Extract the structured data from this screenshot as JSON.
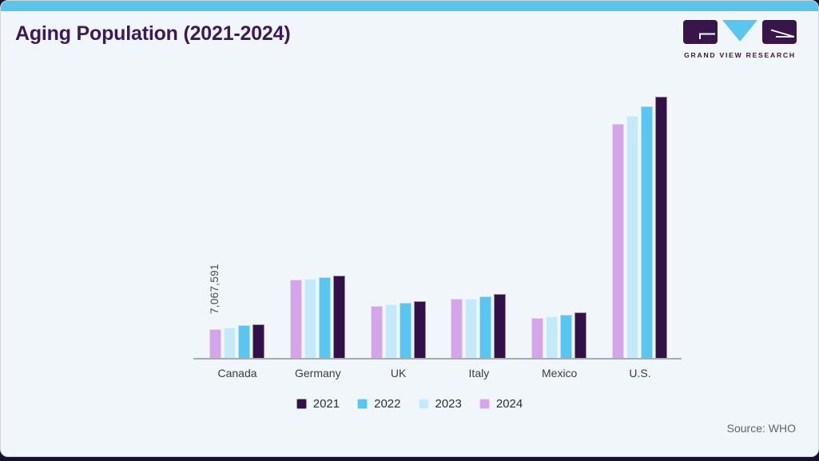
{
  "header": {
    "title": "Aging Population (2021-2024)"
  },
  "logo": {
    "brand": "GRAND VIEW RESEARCH",
    "mark_square_color": "#38154a",
    "mark_triangle_color": "#5ac6f0"
  },
  "footer": {
    "source": "Source: WHO"
  },
  "colors": {
    "card_background": "#f0f6f9",
    "page_background": "#14112e",
    "top_accent_bar": "#5ac4ea",
    "title_text": "#3c1a57",
    "axis_line": "#a7aaae"
  },
  "chart_data": {
    "type": "bar",
    "title": "Aging Population (2021-2024)",
    "xlabel": "",
    "ylabel": "",
    "categories": [
      "Canada",
      "Germany",
      "UK",
      "Italy",
      "Mexico",
      "U.S."
    ],
    "series": [
      {
        "name": "2021",
        "color": "#321148",
        "values": [
          8215000,
          19810000,
          13750000,
          15530000,
          11080000,
          62650000
        ]
      },
      {
        "name": "2022",
        "color": "#58c6f1",
        "values": [
          7965000,
          19480000,
          13430000,
          14960000,
          10560000,
          60360000
        ]
      },
      {
        "name": "2023",
        "color": "#c4e9f8",
        "values": [
          7450000,
          19160000,
          12990000,
          14330000,
          10050000,
          58000000
        ]
      },
      {
        "name": "2024",
        "color": "#d4a6e9",
        "values": [
          7067591,
          18970000,
          12610000,
          14330000,
          9670000,
          56160000
        ]
      }
    ],
    "bar_order_left_to_right": [
      "2024",
      "2023",
      "2022",
      "2021"
    ],
    "annotation": {
      "text": "7,067,591",
      "category": "Canada",
      "series": "2024"
    },
    "legend": [
      "2021",
      "2022",
      "2023",
      "2024"
    ],
    "legend_position": "bottom-center",
    "grid": false,
    "ylim": [
      0,
      63000000
    ],
    "value_per_pixel": 191016,
    "group_left_start": 261,
    "group_pitch": 100.8,
    "source": "Source: WHO"
  }
}
